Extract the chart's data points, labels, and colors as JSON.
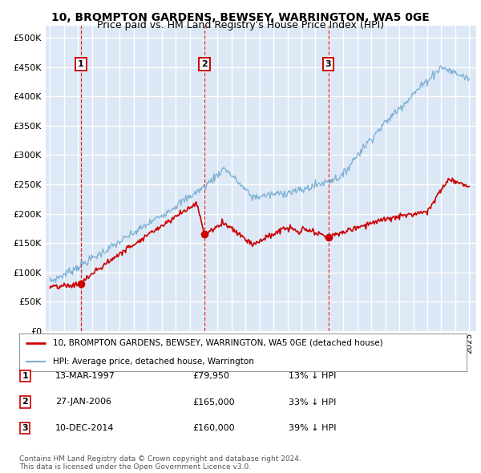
{
  "title": "10, BROMPTON GARDENS, BEWSEY, WARRINGTON, WA5 0GE",
  "subtitle": "Price paid vs. HM Land Registry's House Price Index (HPI)",
  "title_fontsize": 10,
  "subtitle_fontsize": 9,
  "bg_color": "#dce8f5",
  "grid_color": "#ffffff",
  "ylim": [
    0,
    520000
  ],
  "yticks": [
    0,
    50000,
    100000,
    150000,
    200000,
    250000,
    300000,
    350000,
    400000,
    450000,
    500000
  ],
  "xlim_start": 1994.7,
  "xlim_end": 2025.5,
  "sale_dates_num": [
    1997.2,
    2006.07,
    2014.92
  ],
  "sale_prices": [
    79950,
    165000,
    160000
  ],
  "sale_labels": [
    "1",
    "2",
    "3"
  ],
  "red_line_color": "#cc0000",
  "blue_line_color": "#7aafd4",
  "marker_color": "#cc0000",
  "dashed_line_color": "#dd0000",
  "legend_label_red": "10, BROMPTON GARDENS, BEWSEY, WARRINGTON, WA5 0GE (detached house)",
  "legend_label_blue": "HPI: Average price, detached house, Warrington",
  "table_rows": [
    {
      "num": "1",
      "date": "13-MAR-1997",
      "price": "£79,950",
      "pct": "13% ↓ HPI"
    },
    {
      "num": "2",
      "date": "27-JAN-2006",
      "price": "£165,000",
      "pct": "33% ↓ HPI"
    },
    {
      "num": "3",
      "date": "10-DEC-2014",
      "price": "£160,000",
      "pct": "39% ↓ HPI"
    }
  ],
  "footer": "Contains HM Land Registry data © Crown copyright and database right 2024.\nThis data is licensed under the Open Government Licence v3.0."
}
